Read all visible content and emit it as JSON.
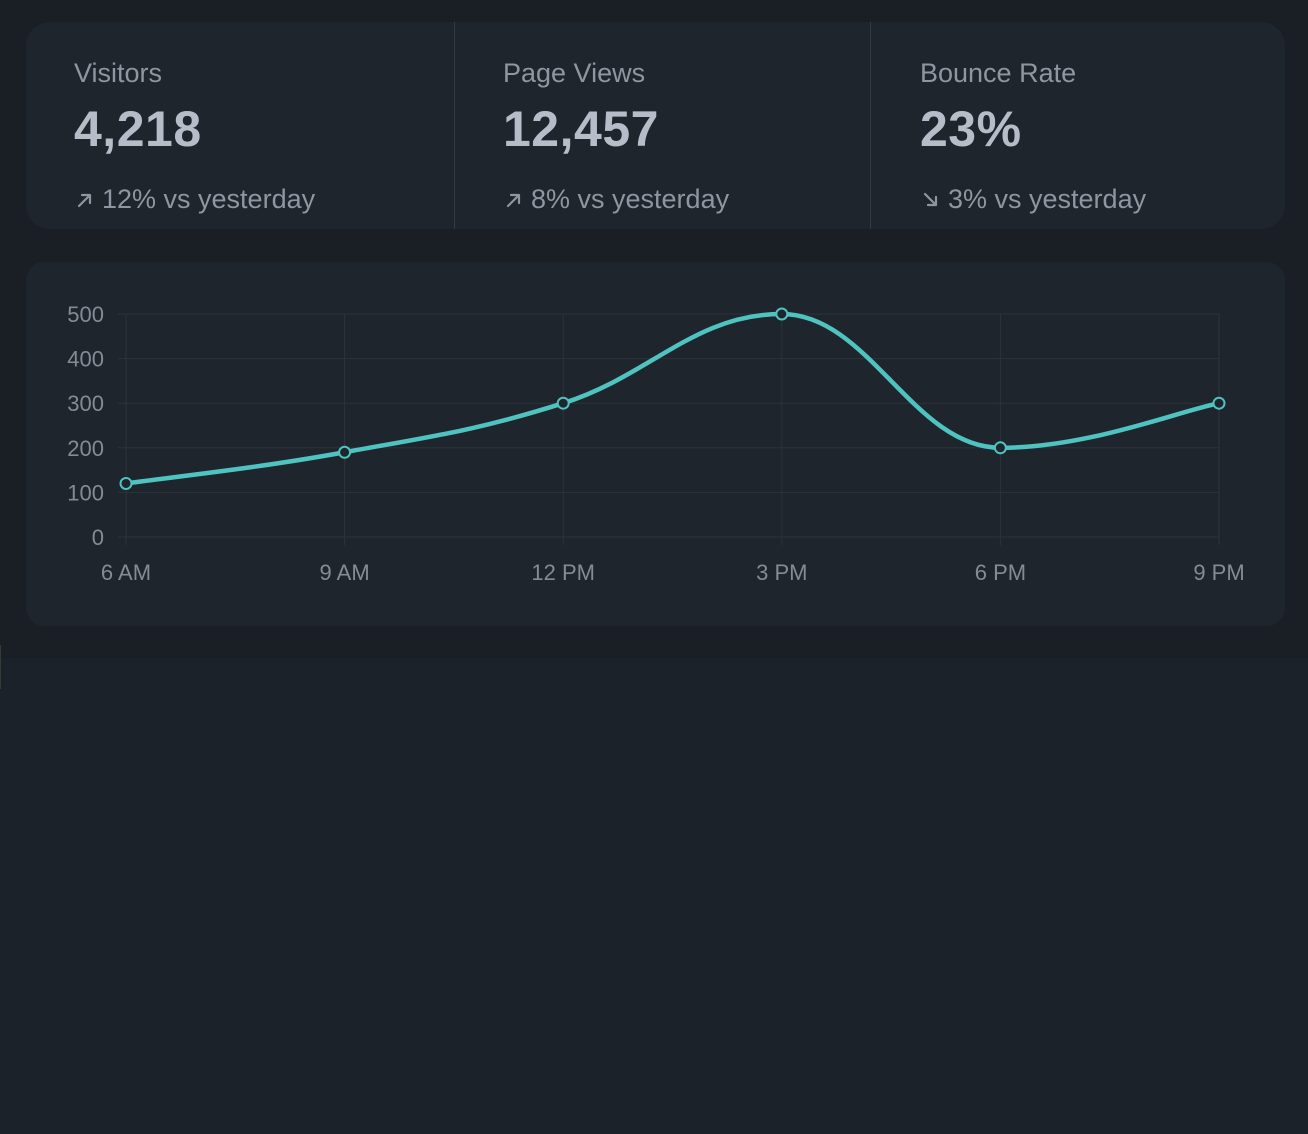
{
  "stats": [
    {
      "label": "Visitors",
      "value": "4,218",
      "direction": "up",
      "change": "12% vs yesterday",
      "icon": "arrow-up-right-icon"
    },
    {
      "label": "Page Views",
      "value": "12,457",
      "direction": "up",
      "change": "8% vs yesterday",
      "icon": "arrow-up-right-icon"
    },
    {
      "label": "Bounce Rate",
      "value": "23%",
      "direction": "down",
      "change": "3% vs yesterday",
      "icon": "arrow-down-right-icon"
    }
  ],
  "colors": {
    "accent": "#4fc3c0",
    "grid": "#2d333c",
    "tick": "#858b96",
    "text_muted": "#8f96a1",
    "value": "#b7bcc9"
  },
  "chart_data": {
    "type": "line",
    "categories": [
      "6 AM",
      "9 AM",
      "12 PM",
      "3 PM",
      "6 PM",
      "9 PM"
    ],
    "series": [
      {
        "name": "Visitors",
        "values": [
          120,
          190,
          300,
          500,
          200,
          300
        ]
      }
    ],
    "ylim": [
      0,
      500
    ],
    "yticks": [
      0,
      100,
      200,
      300,
      400,
      500
    ],
    "grid": true,
    "title": "",
    "xlabel": "",
    "ylabel": ""
  }
}
